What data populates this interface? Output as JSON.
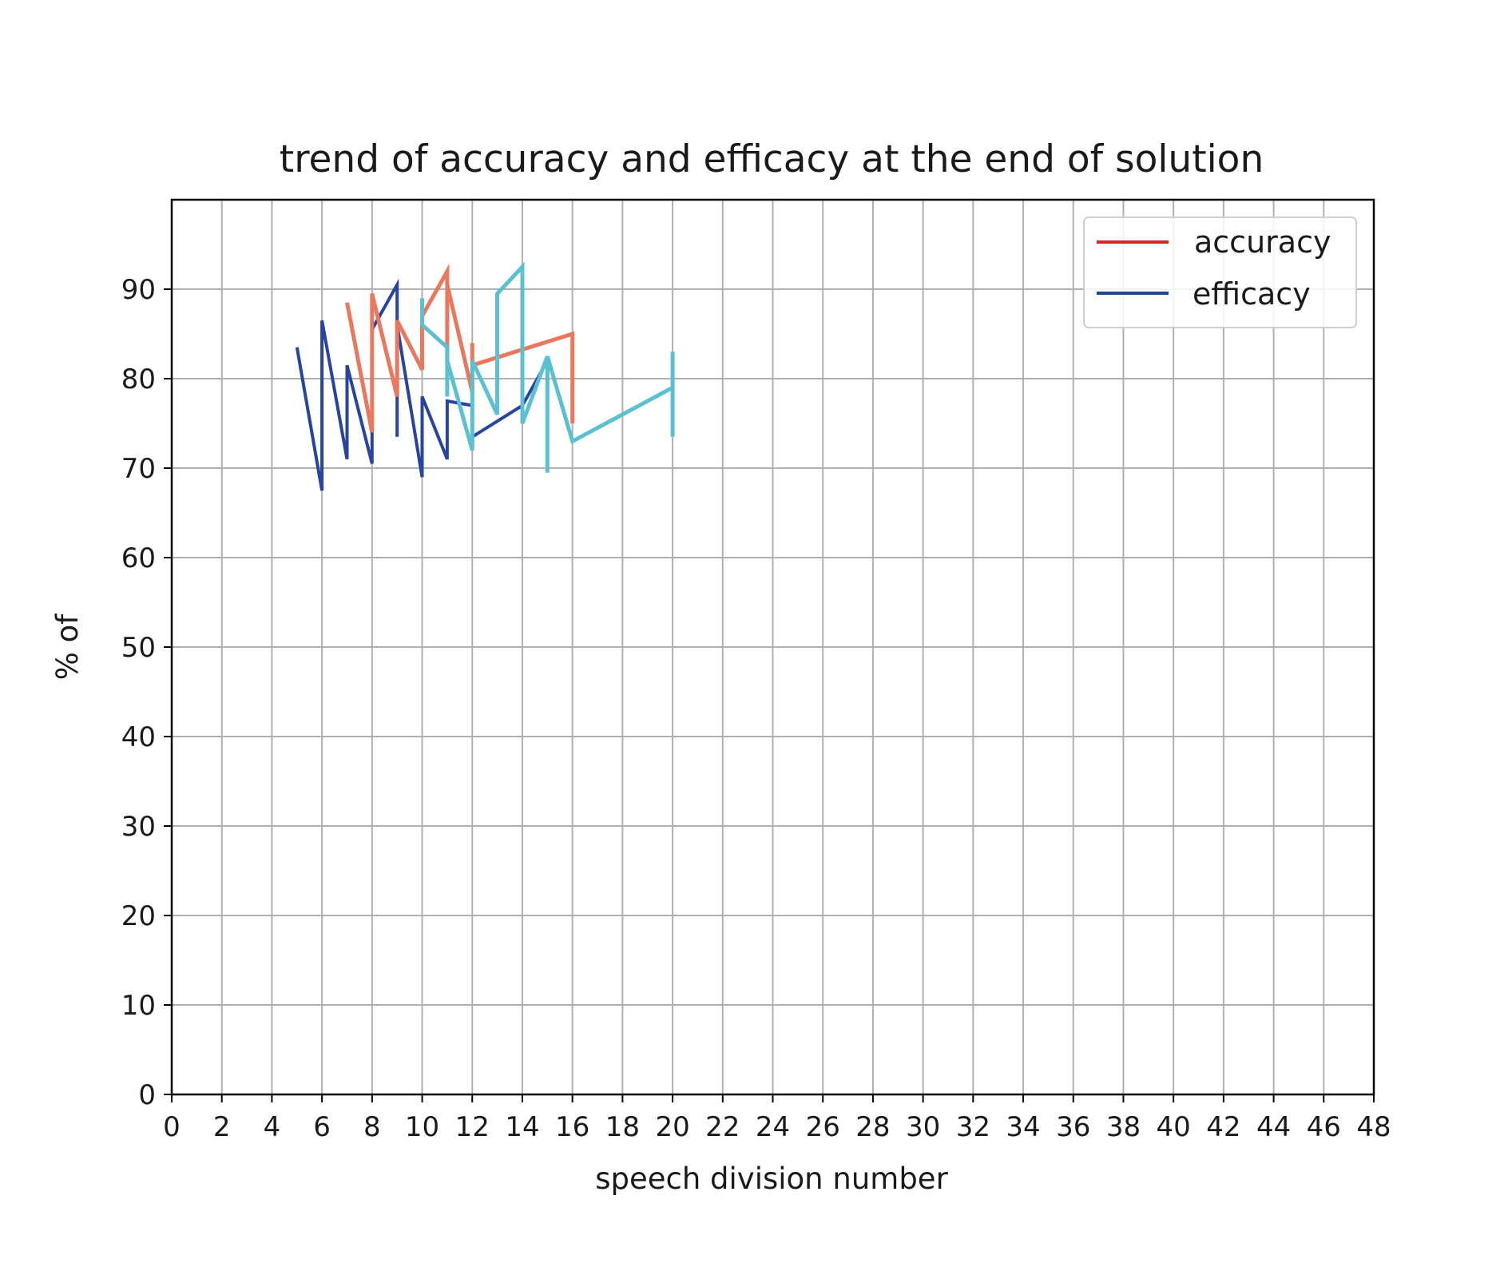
{
  "chart_data": {
    "type": "line",
    "title": "trend of accuracy and efficacy at the end of solution",
    "xlabel": "speech division number",
    "ylabel": "% of",
    "xlim": [
      0,
      48
    ],
    "ylim": [
      0,
      100
    ],
    "xticks": [
      0,
      2,
      4,
      6,
      8,
      10,
      12,
      14,
      16,
      18,
      20,
      22,
      24,
      26,
      28,
      30,
      32,
      34,
      36,
      38,
      40,
      42,
      44,
      46,
      48
    ],
    "yticks": [
      0,
      10,
      20,
      30,
      40,
      50,
      60,
      70,
      80,
      90
    ],
    "grid": true,
    "legend_position": "top-right",
    "legend": [
      {
        "label": "accuracy",
        "color": "#d62728"
      },
      {
        "label": "efficacy",
        "color": "#1f449c"
      }
    ],
    "series": [
      {
        "name": "accuracy",
        "color": "#e8a0a0",
        "width": 3,
        "x": [
          5,
          6,
          6,
          7,
          7,
          8,
          8,
          9,
          9,
          9,
          10,
          10,
          11,
          11,
          12,
          12,
          14,
          15
        ],
        "y": [
          83.5,
          67.5,
          86.5,
          71,
          81.5,
          70.5,
          85.5,
          90.5,
          73.5,
          86,
          69,
          78,
          71,
          77.5,
          77,
          73.5,
          77,
          82
        ]
      },
      {
        "name": "efficacy",
        "color": "#2644a0",
        "width": 4,
        "x": [
          5,
          6,
          6,
          7,
          7,
          8,
          8,
          9,
          9,
          9,
          10,
          10,
          11,
          11,
          12,
          12,
          14,
          15
        ],
        "y": [
          83.5,
          67.5,
          86.5,
          71,
          81.5,
          70.5,
          85.5,
          90.5,
          73.5,
          86,
          69,
          78,
          71,
          77.5,
          77,
          73.5,
          77,
          82
        ]
      },
      {
        "name": "",
        "color": "#e9785f",
        "width": 5,
        "x": [
          7,
          8,
          8,
          9,
          9,
          10,
          10,
          11,
          11,
          11,
          12,
          12,
          12,
          16,
          16
        ],
        "y": [
          88.5,
          74,
          89.5,
          78,
          86.5,
          81,
          87,
          92,
          81.5,
          90.5,
          78.5,
          84,
          81.5,
          85,
          75
        ]
      },
      {
        "name": "",
        "color": "#5bc0d0",
        "width": 5,
        "x": [
          10,
          10,
          11,
          11,
          11,
          12,
          12,
          13,
          13,
          14,
          14,
          15,
          15,
          15,
          16,
          20,
          20,
          20
        ],
        "y": [
          89,
          86,
          83.5,
          78,
          82,
          72,
          82,
          76,
          89.5,
          92.5,
          75,
          82.5,
          69.5,
          82.5,
          73,
          79,
          73.5,
          83
        ]
      }
    ]
  }
}
